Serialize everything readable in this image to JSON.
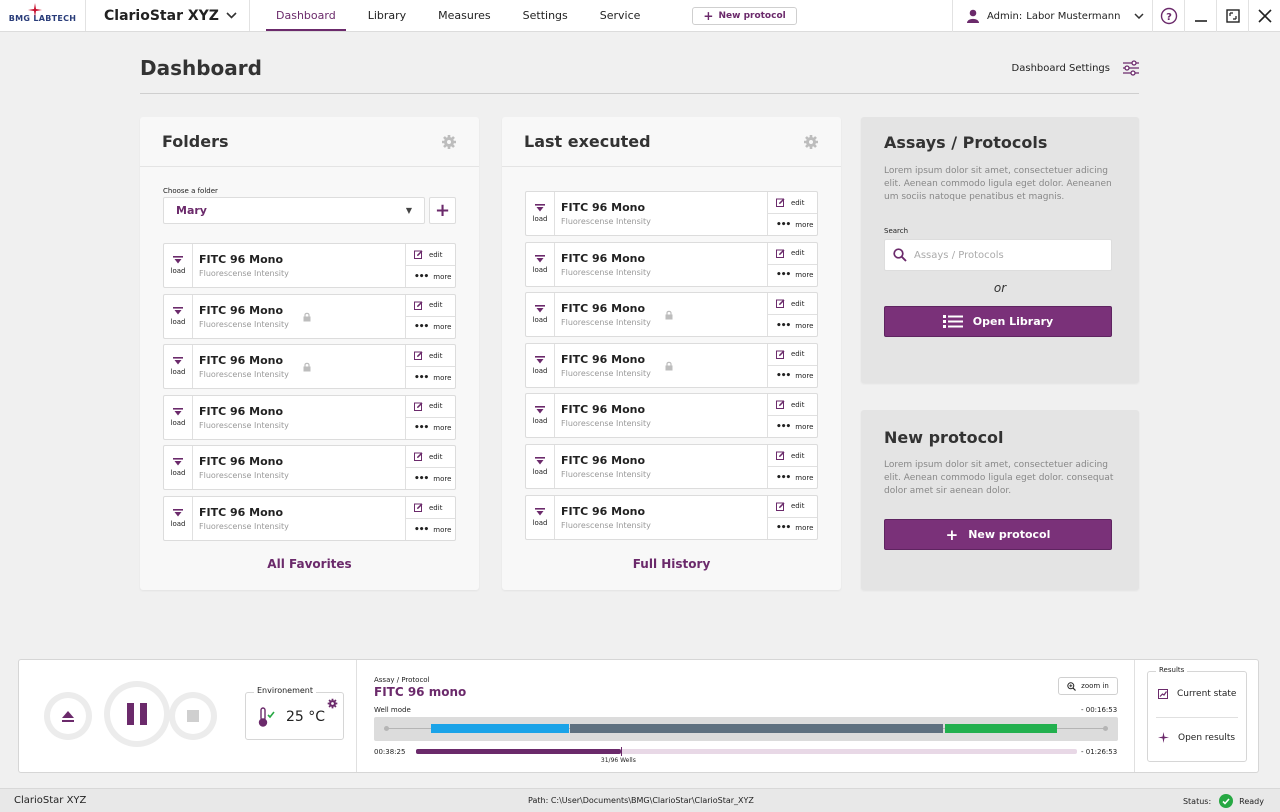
{
  "app": {
    "logo_text": "BMG LABTECH",
    "device_name": "ClarioStar XYZ"
  },
  "nav": {
    "items": [
      {
        "label": "Dashboard",
        "active": true
      },
      {
        "label": "Library"
      },
      {
        "label": "Measures"
      },
      {
        "label": "Settings"
      },
      {
        "label": "Service"
      }
    ],
    "new_protocol_label": "New protocol"
  },
  "user": {
    "role": "Admin:",
    "name": "Labor Mustermann"
  },
  "page": {
    "title": "Dashboard",
    "settings_label": "Dashboard Settings"
  },
  "folders": {
    "title": "Folders",
    "choose_label": "Choose a folder",
    "selected": "Mary",
    "link": "All Favorites",
    "items": [
      {
        "name": "FITC 96 Mono",
        "sub": "Fluorescense Intensity",
        "locked": false
      },
      {
        "name": "FITC 96 Mono",
        "sub": "Fluorescense Intensity",
        "locked": true
      },
      {
        "name": "FITC 96 Mono",
        "sub": "Fluorescense Intensity",
        "locked": true
      },
      {
        "name": "FITC 96 Mono",
        "sub": "Fluorescense Intensity",
        "locked": false
      },
      {
        "name": "FITC 96 Mono",
        "sub": "Fluorescense Intensity",
        "locked": false
      },
      {
        "name": "FITC 96 Mono",
        "sub": "Fluorescense Intensity",
        "locked": false
      }
    ]
  },
  "last_executed": {
    "title": "Last executed",
    "link": "Full History",
    "items": [
      {
        "name": "FITC 96 Mono",
        "sub": "Fluorescense Intensity",
        "locked": false
      },
      {
        "name": "FITC 96 Mono",
        "sub": "Fluorescense Intensity",
        "locked": false
      },
      {
        "name": "FITC 96 Mono",
        "sub": "Fluorescense Intensity",
        "locked": true
      },
      {
        "name": "FITC 96 Mono",
        "sub": "Fluorescense Intensity",
        "locked": true
      },
      {
        "name": "FITC 96 Mono",
        "sub": "Fluorescense Intensity",
        "locked": false
      },
      {
        "name": "FITC 96 Mono",
        "sub": "Fluorescense Intensity",
        "locked": false
      },
      {
        "name": "FITC 96 Mono",
        "sub": "Fluorescense Intensity",
        "locked": false
      }
    ]
  },
  "item_labels": {
    "load": "load",
    "edit": "edit",
    "more": "more"
  },
  "assays": {
    "title": "Assays / Protocols",
    "desc": "Lorem ipsum dolor sit amet, consectetuer adicing elit. Aenean commodo ligula eget dolor. Aeneanen um sociis natoque penatibus et magnis.",
    "search_label": "Search",
    "search_placeholder": "Assays / Protocols",
    "search_value": "",
    "or": "or",
    "button": "Open Library"
  },
  "new_protocol": {
    "title": "New protocol",
    "desc": "Lorem ipsum dolor sit amet, consectetuer adicing elit. Aenean commodo ligula eget dolor. consequat dolor amet sir aenean dolor.",
    "button": "New protocol"
  },
  "control": {
    "environment_label": "Environement",
    "temperature": "25 °C",
    "assay_label": "Assay / Protocol",
    "assay_name": "FITC 96 mono",
    "zoom_label": "zoom in",
    "well_mode_label": "Well mode",
    "well_mode_time": "- 00:16:53",
    "elapsed": "00:38:25",
    "remaining": "- 01:26:53",
    "wells_label": "31/96 Wells",
    "progress": 0.31,
    "segments": [
      {
        "color": "#1aa3e8",
        "start": 0.077,
        "end": 0.262
      },
      {
        "color": "#5f7180",
        "start": 0.264,
        "end": 0.765
      },
      {
        "color": "#22b04e",
        "start": 0.767,
        "end": 0.918
      }
    ],
    "results_label": "Results",
    "current_state": "Current state",
    "open_results": "Open results"
  },
  "statusbar": {
    "device": "ClarioStar XYZ",
    "path": "Path: C:\\User\\Documents\\BMG\\ClarioStar\\ClarioStar_XYZ",
    "status_label": "Status:",
    "status_value": "Ready"
  },
  "colors": {
    "accent": "#6b2a6b",
    "button": "#7a3179",
    "ready": "#27a843"
  }
}
